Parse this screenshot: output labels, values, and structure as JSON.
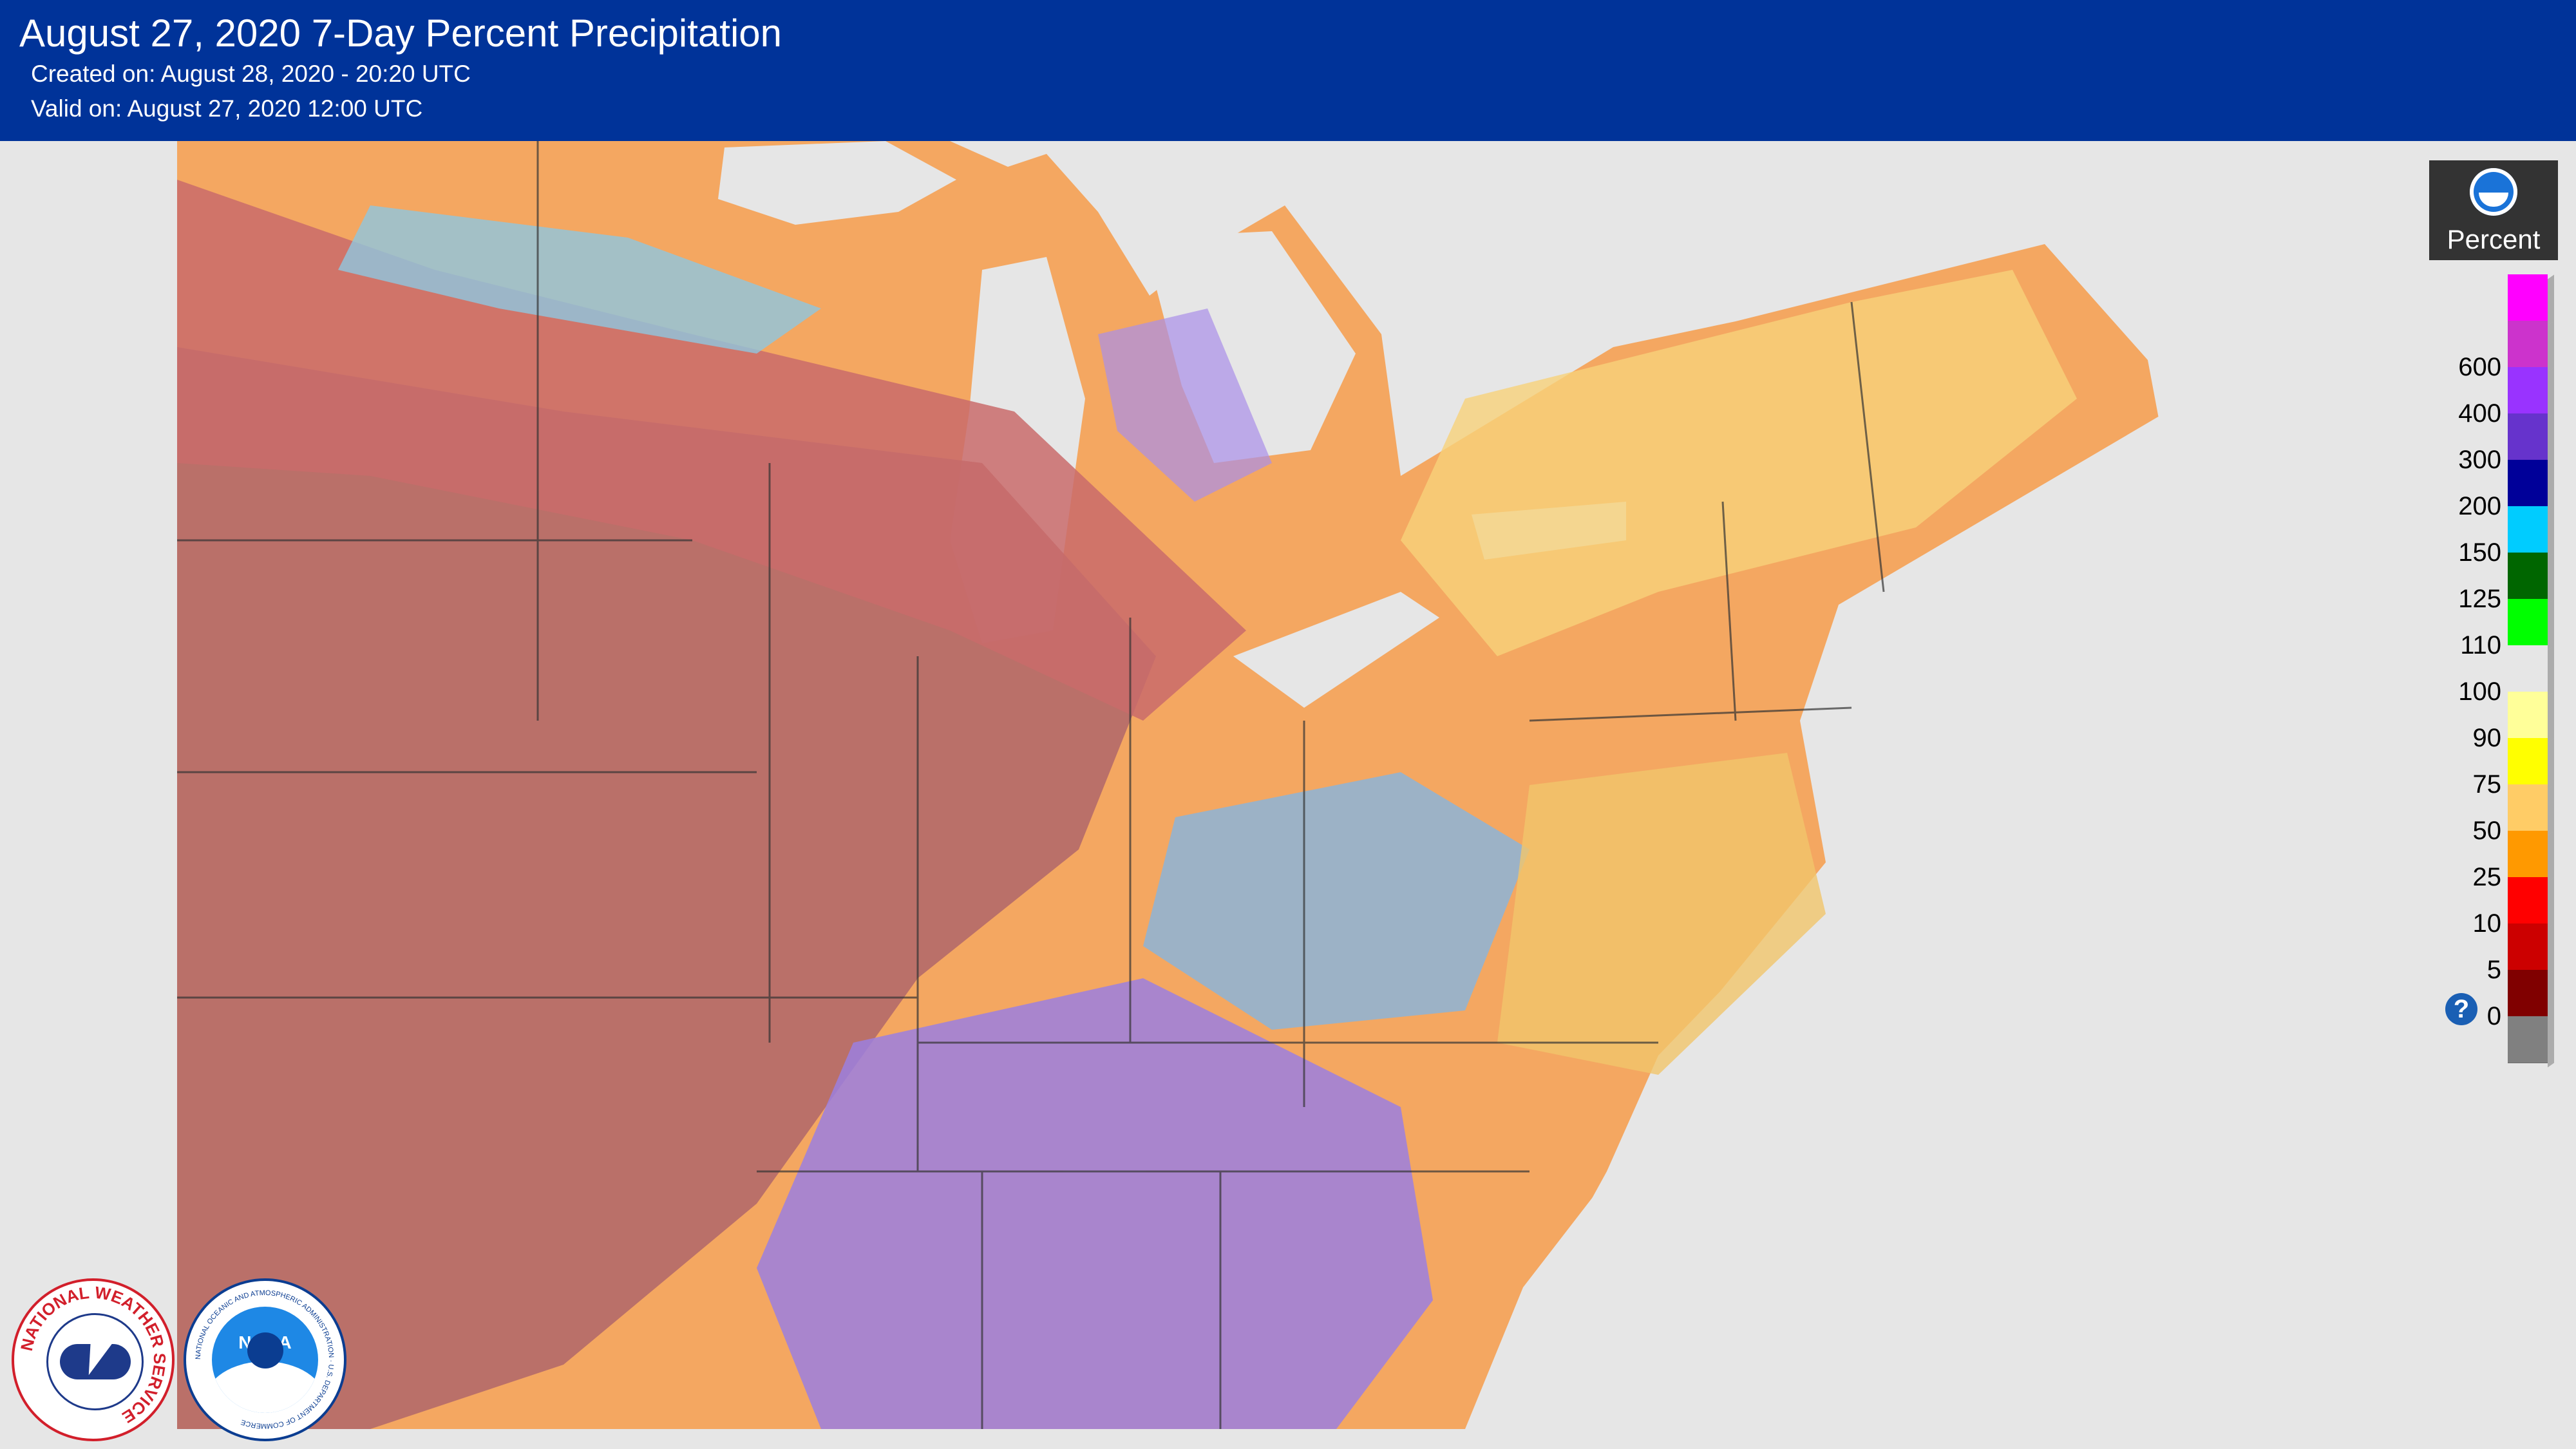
{
  "header": {
    "title": "August 27, 2020 7-Day Percent Precipitation",
    "created": "Created on: August 28, 2020 - 20:20 UTC",
    "valid": "Valid on: August 27, 2020 12:00 UTC"
  },
  "legend": {
    "title": "Percent",
    "logo_icon": "noaa-icon",
    "help_label": "?",
    "bins": [
      {
        "label": "",
        "color": "#ff00ff"
      },
      {
        "label": "600",
        "color": "#cc33cc"
      },
      {
        "label": "400",
        "color": "#9933ff"
      },
      {
        "label": "300",
        "color": "#6633cc"
      },
      {
        "label": "200",
        "color": "#000099"
      },
      {
        "label": "150",
        "color": "#00ccff"
      },
      {
        "label": "125",
        "color": "#006600"
      },
      {
        "label": "110",
        "color": "#00ff00"
      },
      {
        "label": "100",
        "color": "#e6e6e6"
      },
      {
        "label": "90",
        "color": "#ffff99"
      },
      {
        "label": "75",
        "color": "#ffff00"
      },
      {
        "label": "50",
        "color": "#ffcc66"
      },
      {
        "label": "25",
        "color": "#ff9900"
      },
      {
        "label": "10",
        "color": "#ff0000"
      },
      {
        "label": "5",
        "color": "#cc0000"
      },
      {
        "label": "0",
        "color": "#800000"
      },
      {
        "label": "",
        "color": "#808080"
      }
    ]
  },
  "logos": {
    "nws_text": "NATIONAL WEATHER SERVICE",
    "noaa_text": "NOAA",
    "noaa_ring_text": "NATIONAL OCEANIC AND ATMOSPHERIC ADMINISTRATION · U.S. DEPARTMENT OF COMMERCE"
  }
}
